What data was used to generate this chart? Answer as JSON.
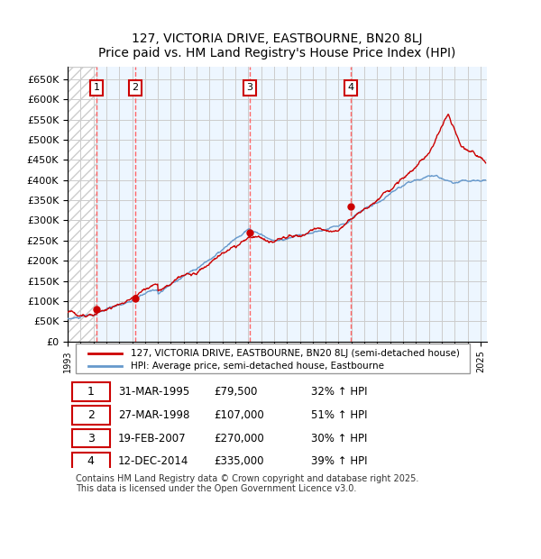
{
  "title": "127, VICTORIA DRIVE, EASTBOURNE, BN20 8LJ",
  "subtitle": "Price paid vs. HM Land Registry's House Price Index (HPI)",
  "ylabel_prefix": "£",
  "yticks": [
    0,
    50000,
    100000,
    150000,
    200000,
    250000,
    300000,
    350000,
    400000,
    450000,
    500000,
    550000,
    600000,
    650000
  ],
  "ylim": [
    0,
    680000
  ],
  "xlim_start": 1993.0,
  "xlim_end": 2025.5,
  "sale_dates": [
    1995.25,
    1998.23,
    2007.13,
    2014.96
  ],
  "sale_prices": [
    79500,
    107000,
    270000,
    335000
  ],
  "sale_labels": [
    "1",
    "2",
    "3",
    "4"
  ],
  "sale_date_strs": [
    "31-MAR-1995",
    "27-MAR-1998",
    "19-FEB-2007",
    "12-DEC-2014"
  ],
  "sale_price_strs": [
    "£79,500",
    "£107,000",
    "£270,000",
    "£335,000"
  ],
  "sale_hpi_strs": [
    "32% ↑ HPI",
    "51% ↑ HPI",
    "30% ↑ HPI",
    "39% ↑ HPI"
  ],
  "hpi_color": "#6699cc",
  "price_color": "#cc0000",
  "shade_color": "#ddeeff",
  "grid_color": "#cccccc",
  "vline_color": "#ff6666",
  "legend_items": [
    "127, VICTORIA DRIVE, EASTBOURNE, BN20 8LJ (semi-detached house)",
    "HPI: Average price, semi-detached house, Eastbourne"
  ],
  "footer": "Contains HM Land Registry data © Crown copyright and database right 2025.\nThis data is licensed under the Open Government Licence v3.0.",
  "bg_hatch_color": "#cccccc",
  "box_color": "#cc0000"
}
